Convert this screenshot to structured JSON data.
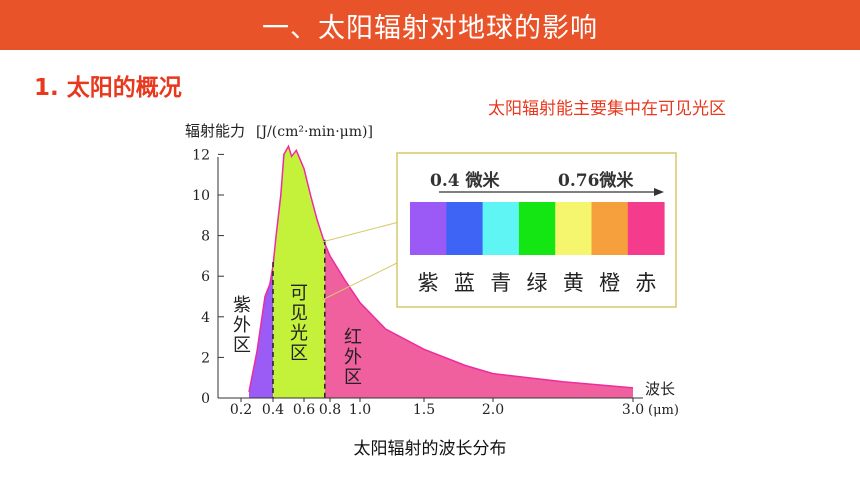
{
  "header": {
    "title": "一、太阳辐射对地球的影响"
  },
  "section": {
    "title": "1. 太阳的概况"
  },
  "note": "太阳辐射能主要集中在可见光区",
  "caption": "太阳辐射的波长分布",
  "colors": {
    "banner": "#e8532a",
    "accent_text": "#e8381e",
    "uv_region": "#9b5cf6",
    "visible_region": "#c4f23a",
    "ir_region": "#f0609e",
    "curve": "#ee2ba0"
  },
  "chart_data": {
    "type": "area",
    "ylabel": "辐射能力",
    "yunit": "[J/(cm²·min·μm)]",
    "xlabel": "波长",
    "xunit": "(μm)",
    "y_ticks": [
      "0",
      "2",
      "4",
      "6",
      "8",
      "10",
      "12"
    ],
    "x_ticks": [
      "0.2",
      "0.4",
      "0.6",
      "0.8",
      "1.0",
      "1.5",
      "2.0",
      "3.0"
    ],
    "ylim": [
      0,
      12.5
    ],
    "xlim": [
      0.2,
      3.0
    ],
    "regions": [
      {
        "label": "紫外区",
        "from": 0.2,
        "to": 0.4
      },
      {
        "label": "可见光区",
        "from": 0.4,
        "to": 0.76
      },
      {
        "label": "红外区",
        "from": 0.76,
        "to": 3.0
      }
    ],
    "series": [
      {
        "x": [
          0.25,
          0.3,
          0.35,
          0.38,
          0.4,
          0.42,
          0.45,
          0.47,
          0.5,
          0.52,
          0.55,
          0.6,
          0.65,
          0.7,
          0.76,
          0.8,
          0.9,
          1.0,
          1.2,
          1.5,
          1.8,
          2.0,
          2.5,
          3.0
        ],
        "y": [
          0.3,
          2.3,
          5.0,
          5.6,
          6.5,
          8.0,
          10.0,
          12.0,
          12.4,
          11.9,
          12.2,
          11.3,
          10.0,
          8.8,
          7.6,
          7.0,
          5.8,
          4.7,
          3.4,
          2.4,
          1.6,
          1.2,
          0.8,
          0.5
        ]
      }
    ],
    "inset": {
      "wavelength_labels": [
        "0.4 微米",
        "0.76微米"
      ],
      "colors": [
        "紫",
        "蓝",
        "青",
        "绿",
        "黄",
        "橙",
        "赤"
      ],
      "swatches": [
        "#9b59f5",
        "#3d64f5",
        "#5ff5f5",
        "#14e614",
        "#f5f56e",
        "#f5a03c",
        "#f53c8c"
      ]
    }
  }
}
